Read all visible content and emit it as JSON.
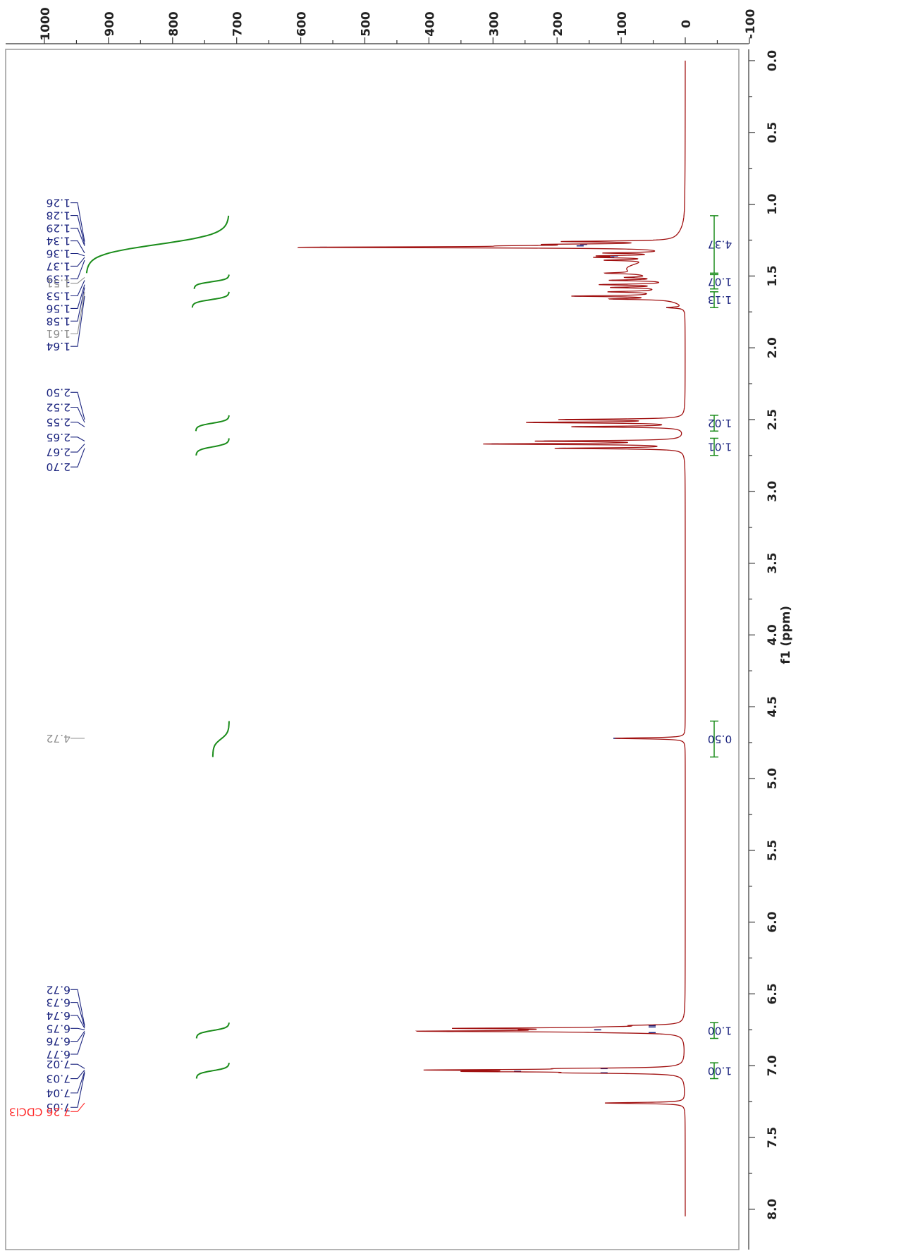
{
  "chart_data": {
    "type": "line",
    "title": "",
    "xlabel": "f1 (ppm)",
    "ylabel": "",
    "xlim": [
      0.0,
      8.0
    ],
    "ylim": [
      -100,
      1000
    ],
    "x_ticks": [
      "0.0",
      "0.5",
      "1.0",
      "1.5",
      "2.0",
      "2.5",
      "3.0",
      "3.5",
      "4.0",
      "4.5",
      "5.0",
      "5.5",
      "6.0",
      "6.5",
      "7.0",
      "7.5",
      "8.0"
    ],
    "y_ticks": [
      "1000",
      "900",
      "800",
      "700",
      "600",
      "500",
      "400",
      "300",
      "200",
      "100",
      "0",
      "-100"
    ],
    "colors": {
      "spectrum": "#a01010",
      "peak_label": "#1a237e",
      "integral": "#1a8c1a",
      "solvent": "#ff2a2a",
      "impurity": "#909090",
      "frame": "#999999"
    },
    "spectrum_peaks": [
      {
        "ppm": 1.26,
        "intensity": 165
      },
      {
        "ppm": 1.28,
        "intensity": 150
      },
      {
        "ppm": 1.29,
        "intensity": 155
      },
      {
        "ppm": 1.3,
        "intensity": 555
      },
      {
        "ppm": 1.34,
        "intensity": 95
      },
      {
        "ppm": 1.36,
        "intensity": 88
      },
      {
        "ppm": 1.37,
        "intensity": 88
      },
      {
        "ppm": 1.39,
        "intensity": 70
      },
      {
        "ppm": 1.48,
        "intensity": 50
      },
      {
        "ppm": 1.51,
        "intensity": 45
      },
      {
        "ppm": 1.53,
        "intensity": 85
      },
      {
        "ppm": 1.56,
        "intensity": 105
      },
      {
        "ppm": 1.58,
        "intensity": 80
      },
      {
        "ppm": 1.61,
        "intensity": 75
      },
      {
        "ppm": 1.64,
        "intensity": 135
      },
      {
        "ppm": 1.66,
        "intensity": 85
      },
      {
        "ppm": 1.72,
        "intensity": 25
      },
      {
        "ppm": 2.5,
        "intensity": 185
      },
      {
        "ppm": 2.52,
        "intensity": 235
      },
      {
        "ppm": 2.55,
        "intensity": 170
      },
      {
        "ppm": 2.65,
        "intensity": 218
      },
      {
        "ppm": 2.67,
        "intensity": 300
      },
      {
        "ppm": 2.7,
        "intensity": 195
      },
      {
        "ppm": 4.72,
        "intensity": 110
      },
      {
        "ppm": 6.72,
        "intensity": 55
      },
      {
        "ppm": 6.73,
        "intensity": 55
      },
      {
        "ppm": 6.74,
        "intensity": 310
      },
      {
        "ppm": 6.75,
        "intensity": 140
      },
      {
        "ppm": 6.76,
        "intensity": 370
      },
      {
        "ppm": 6.77,
        "intensity": 55
      },
      {
        "ppm": 7.02,
        "intensity": 130
      },
      {
        "ppm": 7.03,
        "intensity": 335
      },
      {
        "ppm": 7.04,
        "intensity": 265
      },
      {
        "ppm": 7.05,
        "intensity": 130
      },
      {
        "ppm": 7.26,
        "intensity": 125
      }
    ],
    "peak_label_groups": [
      {
        "labels": [
          "1.26",
          "1.28",
          "1.29",
          "1.34",
          "1.36",
          "1.37",
          "1.39"
        ],
        "muted": [
          false,
          false,
          false,
          false,
          false,
          false,
          false
        ],
        "top_ppm": 0.99,
        "bottom_ppm": 1.52,
        "ppms": [
          1.26,
          1.28,
          1.29,
          1.34,
          1.36,
          1.37,
          1.39
        ]
      },
      {
        "labels": [
          "1.51",
          "1.53",
          "1.56",
          "1.58",
          "1.61",
          "1.64"
        ],
        "muted": [
          true,
          false,
          false,
          false,
          true,
          false
        ],
        "top_ppm": 1.55,
        "bottom_ppm": 1.99,
        "ppms": [
          1.51,
          1.53,
          1.56,
          1.58,
          1.61,
          1.64
        ]
      },
      {
        "labels": [
          "2.50",
          "2.52",
          "2.55",
          "2.65",
          "2.67",
          "2.70"
        ],
        "muted": [
          false,
          false,
          false,
          false,
          false,
          false
        ],
        "top_ppm": 2.31,
        "bottom_ppm": 2.83,
        "ppms": [
          2.5,
          2.52,
          2.55,
          2.65,
          2.67,
          2.7
        ]
      },
      {
        "labels": [
          "4.72"
        ],
        "muted": [
          true
        ],
        "top_ppm": 4.72,
        "bottom_ppm": 4.72,
        "ppms": [
          4.72
        ]
      },
      {
        "labels": [
          "6.72",
          "6.73",
          "6.74",
          "6.75",
          "6.76",
          "6.77"
        ],
        "muted": [
          false,
          false,
          false,
          false,
          false,
          false
        ],
        "top_ppm": 6.47,
        "bottom_ppm": 6.92,
        "ppms": [
          6.72,
          6.73,
          6.74,
          6.75,
          6.76,
          6.77
        ]
      },
      {
        "labels": [
          "7.02",
          "7.03",
          "7.04",
          "7.05"
        ],
        "muted": [
          false,
          false,
          false,
          false
        ],
        "top_ppm": 6.99,
        "bottom_ppm": 7.29,
        "ppms": [
          7.02,
          7.03,
          7.04,
          7.05
        ]
      },
      {
        "labels": [
          "7.26 CDCl3"
        ],
        "muted": [
          false
        ],
        "solvent": true,
        "top_ppm": 7.32,
        "bottom_ppm": 7.32,
        "ppms": [
          7.26
        ]
      }
    ],
    "integrals": [
      {
        "from_ppm": 1.08,
        "to_ppm": 1.48,
        "value": "4.37"
      },
      {
        "from_ppm": 1.49,
        "to_ppm": 1.59,
        "value": "1.07"
      },
      {
        "from_ppm": 1.61,
        "to_ppm": 1.72,
        "value": "1.13"
      },
      {
        "from_ppm": 2.47,
        "to_ppm": 2.58,
        "value": "1.02"
      },
      {
        "from_ppm": 2.63,
        "to_ppm": 2.75,
        "value": "1.01"
      },
      {
        "from_ppm": 4.6,
        "to_ppm": 4.85,
        "value": "0.50"
      },
      {
        "from_ppm": 6.7,
        "to_ppm": 6.81,
        "value": "1.00"
      },
      {
        "from_ppm": 6.98,
        "to_ppm": 7.09,
        "value": "1.00"
      }
    ]
  }
}
